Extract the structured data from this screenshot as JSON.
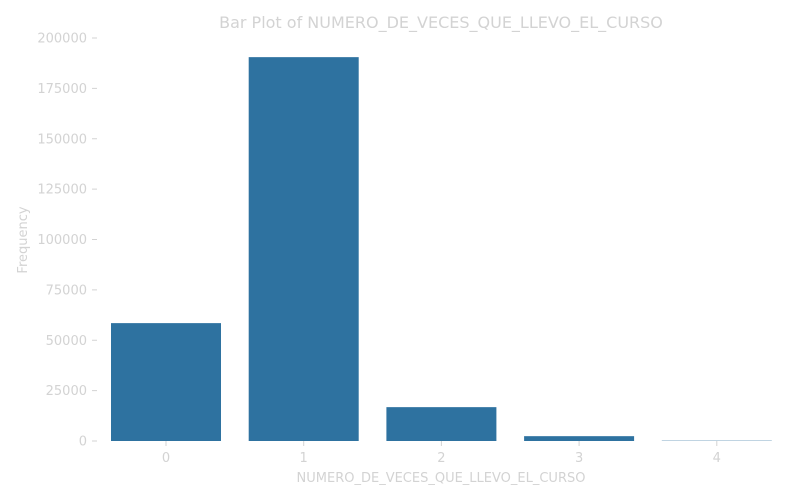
{
  "chart_data": {
    "type": "bar",
    "title": "Bar Plot of NUMERO_DE_VECES_QUE_LLEVO_EL_CURSO",
    "xlabel": "NUMERO_DE_VECES_QUE_LLEVO_EL_CURSO",
    "ylabel": "Frequency",
    "categories": [
      "0",
      "1",
      "2",
      "3",
      "4"
    ],
    "values": [
      58500,
      190500,
      16800,
      2400,
      150
    ],
    "ylim": [
      0,
      200000
    ],
    "yticks": [
      0,
      25000,
      50000,
      75000,
      100000,
      125000,
      150000,
      175000,
      200000
    ],
    "ytick_labels": [
      "0",
      "25000",
      "50000",
      "75000",
      "100000",
      "125000",
      "150000",
      "175000",
      "200000"
    ],
    "grid": false,
    "bar_color": "#2e72a0",
    "text_color": "#d3d3d3"
  }
}
